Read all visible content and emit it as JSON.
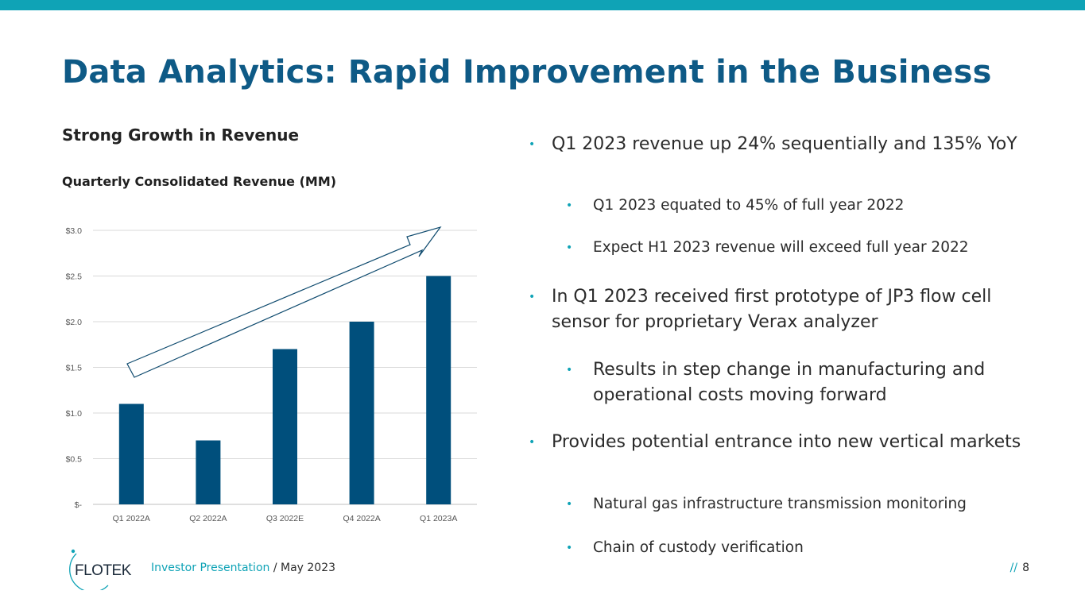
{
  "title": "Data Analytics: Rapid Improvement in the Business",
  "subtitle": "Strong Growth in Revenue",
  "chart_data": {
    "type": "bar",
    "title": "Quarterly Consolidated Revenue (MM)",
    "categories": [
      "Q1 2022A",
      "Q2 2022A",
      "Q3 2022E",
      "Q4 2022A",
      "Q1 2023A"
    ],
    "values": [
      1.1,
      0.7,
      1.7,
      2.0,
      2.5
    ],
    "ylim": [
      0,
      3.0
    ],
    "yticks": [
      0,
      0.5,
      1.0,
      1.5,
      2.0,
      2.5,
      3.0
    ],
    "ytick_labels": [
      "$-",
      "$0.5",
      "$1.0",
      "$1.5",
      "$2.0",
      "$2.5",
      "$3.0"
    ],
    "xlabel": "",
    "ylabel": "",
    "grid": true,
    "annotation": "upward trend arrow"
  },
  "bullets": [
    {
      "level": 1,
      "text": "Q1 2023 revenue up 24% sequentially and 135% YoY"
    },
    {
      "level": 2,
      "text": "Q1 2023 equated to 45% of full year 2022"
    },
    {
      "level": 2,
      "text": "Expect H1 2023 revenue will exceed full year 2022"
    },
    {
      "level": 1,
      "text": "In Q1 2023 received first prototype of JP3 flow cell sensor for proprietary Verax analyzer"
    },
    {
      "level": 2,
      "text": "Results in step change in manufacturing and operational costs moving forward"
    },
    {
      "level": 1,
      "text": "Provides potential entrance into new vertical markets"
    },
    {
      "level": 2,
      "text": "Natural gas infrastructure transmission monitoring"
    },
    {
      "level": 2,
      "text": "Chain of custody verification"
    }
  ],
  "footer": {
    "logo_text": "FLOTEK",
    "presentation": "Investor Presentation",
    "date": " / May 2023",
    "slashes": "//",
    "page_number": "8"
  },
  "colors": {
    "accent": "#0fa3b6",
    "title": "#0e5a86",
    "bar": "#004f7c",
    "arrow": "#0e4a6e"
  }
}
